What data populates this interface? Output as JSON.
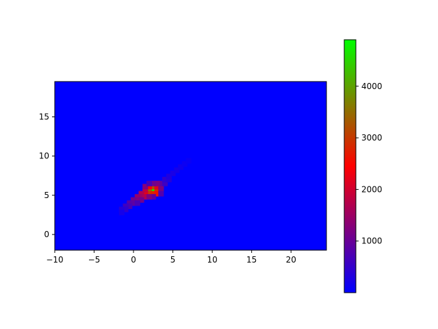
{
  "chart_data": {
    "type": "heatmap",
    "title": "",
    "xlabel": "",
    "ylabel": "",
    "xlim": [
      -10,
      24.5
    ],
    "ylim": [
      -2,
      19.5
    ],
    "x_ticks": [
      -10,
      -5,
      0,
      5,
      10,
      15,
      20
    ],
    "y_ticks": [
      0,
      5,
      10,
      15
    ],
    "bin_size": 0.7,
    "background_value": 0,
    "colormap": {
      "low": "#0000ff",
      "mid": "#ff0000",
      "high": "#00ff00"
    },
    "colorbar": {
      "min": 0,
      "max": 4900,
      "ticks": [
        1000,
        2000,
        3000,
        4000
      ]
    },
    "cells": [
      {
        "x": 2.5,
        "y": 5.7,
        "value": 4900
      },
      {
        "x": 2.0,
        "y": 5.7,
        "value": 3600
      },
      {
        "x": 2.5,
        "y": 6.1,
        "value": 3300
      },
      {
        "x": 3.0,
        "y": 5.7,
        "value": 2900
      },
      {
        "x": 2.0,
        "y": 5.2,
        "value": 3000
      },
      {
        "x": 2.5,
        "y": 5.2,
        "value": 2800
      },
      {
        "x": 3.0,
        "y": 5.2,
        "value": 2600
      },
      {
        "x": 2.0,
        "y": 6.1,
        "value": 2400
      },
      {
        "x": 3.0,
        "y": 6.1,
        "value": 2200
      },
      {
        "x": 1.5,
        "y": 5.2,
        "value": 2200
      },
      {
        "x": 1.5,
        "y": 5.7,
        "value": 1900
      },
      {
        "x": 1.0,
        "y": 5.2,
        "value": 1700
      },
      {
        "x": 1.0,
        "y": 4.8,
        "value": 1500
      },
      {
        "x": 1.5,
        "y": 4.8,
        "value": 1700
      },
      {
        "x": 0.5,
        "y": 4.8,
        "value": 1400
      },
      {
        "x": 0.5,
        "y": 4.4,
        "value": 1200
      },
      {
        "x": 0.0,
        "y": 4.4,
        "value": 1100
      },
      {
        "x": 0.0,
        "y": 4.0,
        "value": 900
      },
      {
        "x": -0.5,
        "y": 4.0,
        "value": 850
      },
      {
        "x": -0.5,
        "y": 3.6,
        "value": 700
      },
      {
        "x": -1.0,
        "y": 3.6,
        "value": 600
      },
      {
        "x": -1.0,
        "y": 3.2,
        "value": 450
      },
      {
        "x": -1.5,
        "y": 3.2,
        "value": 350
      },
      {
        "x": -1.5,
        "y": 2.8,
        "value": 200
      },
      {
        "x": 1.0,
        "y": 4.4,
        "value": 1100
      },
      {
        "x": 0.5,
        "y": 4.0,
        "value": 700
      },
      {
        "x": 3.5,
        "y": 6.1,
        "value": 1300
      },
      {
        "x": 3.5,
        "y": 6.5,
        "value": 900
      },
      {
        "x": 3.0,
        "y": 6.5,
        "value": 1200
      },
      {
        "x": 2.5,
        "y": 6.5,
        "value": 1100
      },
      {
        "x": 4.0,
        "y": 6.5,
        "value": 600
      },
      {
        "x": 4.0,
        "y": 7.0,
        "value": 450
      },
      {
        "x": 4.5,
        "y": 7.0,
        "value": 350
      },
      {
        "x": 4.5,
        "y": 7.4,
        "value": 300
      },
      {
        "x": 5.0,
        "y": 7.8,
        "value": 250
      },
      {
        "x": 5.5,
        "y": 8.2,
        "value": 200
      },
      {
        "x": 6.0,
        "y": 8.6,
        "value": 160
      },
      {
        "x": 6.5,
        "y": 9.0,
        "value": 120
      },
      {
        "x": 7.0,
        "y": 9.4,
        "value": 90
      },
      {
        "x": 1.5,
        "y": 6.1,
        "value": 1300
      },
      {
        "x": 2.0,
        "y": 6.5,
        "value": 700
      },
      {
        "x": 3.5,
        "y": 5.7,
        "value": 1200
      },
      {
        "x": 3.5,
        "y": 5.2,
        "value": 800
      },
      {
        "x": 2.5,
        "y": 4.8,
        "value": 900
      },
      {
        "x": 2.0,
        "y": 4.8,
        "value": 1200
      }
    ]
  }
}
